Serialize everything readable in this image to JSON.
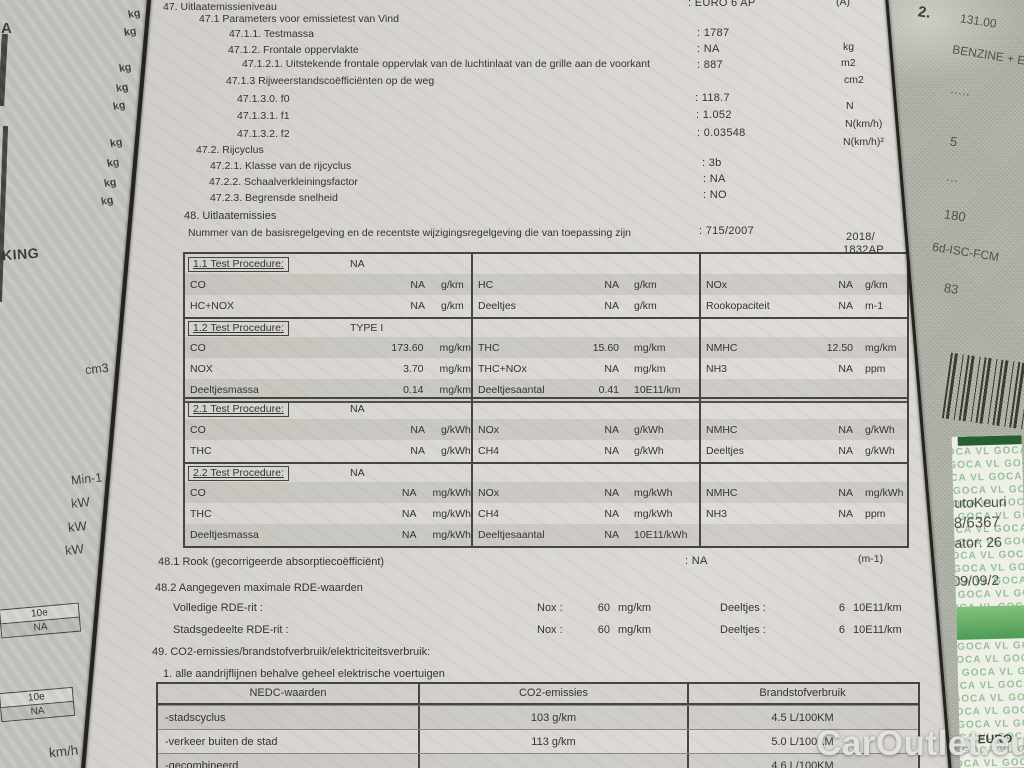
{
  "watermark": "CarOutlet.eu",
  "left_sheet": {
    "fragment_top": "A",
    "kg_labels": [
      "kg",
      "kg",
      "kg",
      "kg",
      "kg",
      "kg",
      "kg",
      "kg",
      "kg"
    ],
    "fragment_king": "KING",
    "cm3": "cm3",
    "min1": "Min-1",
    "kw_labels": [
      "kW",
      "kW",
      "kW"
    ],
    "mini_tables": [
      {
        "header": "10e",
        "value": "NA"
      },
      {
        "header": "10e",
        "value": "NA"
      }
    ],
    "kmh": "km/h"
  },
  "section47": {
    "items": [
      {
        "num": "47.",
        "label": "Uitlaatemissieniveau",
        "value": ": EURO 6 AP",
        "unit": ""
      },
      {
        "num": "47.1",
        "label": "Parameters voor emissietest van Vind",
        "value": "",
        "unit": ""
      },
      {
        "num": "47.1.1.",
        "label": "Testmassa",
        "value": ": 1787",
        "unit": ""
      },
      {
        "num": "47.1.2.",
        "label": "Frontale oppervlakte",
        "value": ": NA",
        "unit": "kg"
      },
      {
        "num": "47.1.2.1.",
        "label": "Uitstekende frontale oppervlak van de luchtinlaat van de grille aan de voorkant",
        "value": ": 887",
        "unit": "m2"
      },
      {
        "num": "47.1.3",
        "label": "Rijweerstandscoëfficiënten op de weg",
        "value": "",
        "unit": "cm2"
      },
      {
        "num": "47.1.3.0.",
        "label": "f0",
        "value": ": 118.7",
        "unit": ""
      },
      {
        "num": "47.1.3.1.",
        "label": "f1",
        "value": ": 1.052",
        "unit": "N"
      },
      {
        "num": "47.1.3.2.",
        "label": "f2",
        "value": ": 0.03548",
        "unit": "N(km/h)",
        "unit2": "N(km/h)²"
      },
      {
        "num": "47.2.",
        "label": "Rijcyclus",
        "value": "",
        "unit": ""
      },
      {
        "num": "47.2.1.",
        "label": "Klasse van de rijcyclus",
        "value": ": 3b",
        "unit": ""
      },
      {
        "num": "47.2.2.",
        "label": "Schaalverkleiningsfactor",
        "value": ": NA",
        "unit": ""
      },
      {
        "num": "47.2.3.",
        "label": "Begrensde snelheid",
        "value": ": NO",
        "unit": ""
      }
    ],
    "header_fragment": "(A)"
  },
  "section48": {
    "heading": "48. Uitlaatemissies",
    "regulation_label": "Nummer van de basisregelgeving en de recentste wijzigingsregelgeving die van toepassing zijn",
    "regulation_value": ": 715/2007",
    "amendment_line1": "2018/",
    "amendment_line2": "1832AP"
  },
  "emissions_table": {
    "blocks": [
      {
        "procedure_label": "1.1 Test Procedure:",
        "procedure_value": "NA",
        "rows": [
          [
            {
              "l": "CO",
              "v": "NA",
              "u": "g/km"
            },
            {
              "l": "HC",
              "v": "NA",
              "u": "g/km"
            },
            {
              "l": "NOx",
              "v": "NA",
              "u": "g/km"
            }
          ],
          [
            {
              "l": "HC+NOX",
              "v": "NA",
              "u": "g/km"
            },
            {
              "l": "Deeltjes",
              "v": "NA",
              "u": "g/km"
            },
            {
              "l": "Rookopaciteit",
              "v": "NA",
              "u": "m-1"
            }
          ]
        ]
      },
      {
        "procedure_label": "1.2 Test Procedure:",
        "procedure_value": "TYPE I",
        "rows": [
          [
            {
              "l": "CO",
              "v": "173.60",
              "u": "mg/km"
            },
            {
              "l": "THC",
              "v": "15.60",
              "u": "mg/km"
            },
            {
              "l": "NMHC",
              "v": "12.50",
              "u": "mg/km"
            }
          ],
          [
            {
              "l": "NOX",
              "v": "3.70",
              "u": "mg/km"
            },
            {
              "l": "THC+NOx",
              "v": "NA",
              "u": "mg/km"
            },
            {
              "l": "NH3",
              "v": "NA",
              "u": "ppm"
            }
          ],
          [
            {
              "l": "Deeltjesmassa",
              "v": "0.14",
              "u": "mg/km"
            },
            {
              "l": "Deeltjesaantal",
              "v": "0.41",
              "u": "10E11/km"
            },
            null
          ]
        ]
      },
      {
        "procedure_label": "2.1 Test Procedure:",
        "procedure_value": "NA",
        "rows": [
          [
            {
              "l": "CO",
              "v": "NA",
              "u": "g/kWh"
            },
            {
              "l": "NOx",
              "v": "NA",
              "u": "g/kWh"
            },
            {
              "l": "NMHC",
              "v": "NA",
              "u": "g/kWh"
            }
          ],
          [
            {
              "l": "THC",
              "v": "NA",
              "u": "g/kWh"
            },
            {
              "l": "CH4",
              "v": "NA",
              "u": "g/kWh"
            },
            {
              "l": "Deeltjes",
              "v": "NA",
              "u": "g/kWh"
            }
          ]
        ]
      },
      {
        "procedure_label": "2.2 Test Procedure:",
        "procedure_value": "NA",
        "rows": [
          [
            {
              "l": "CO",
              "v": "NA",
              "u": "mg/kWh"
            },
            {
              "l": "NOx",
              "v": "NA",
              "u": "mg/kWh"
            },
            {
              "l": "NMHC",
              "v": "NA",
              "u": "mg/kWh"
            }
          ],
          [
            {
              "l": "THC",
              "v": "NA",
              "u": "mg/kWh"
            },
            {
              "l": "CH4",
              "v": "NA",
              "u": "mg/kWh"
            },
            {
              "l": "NH3",
              "v": "NA",
              "u": "ppm"
            }
          ],
          [
            {
              "l": "Deeltjesmassa",
              "v": "NA",
              "u": "mg/kWh"
            },
            {
              "l": "Deeltjesaantal",
              "v": "NA",
              "u": "10E11/kWh"
            },
            null
          ]
        ]
      }
    ]
  },
  "section48_extra": {
    "rook_label": "48.1 Rook (gecorrigeerde absorptiecoëfficiënt)",
    "rook_value": ": NA",
    "rook_unit": "(m-1)",
    "rde_heading": "48.2 Aangegeven maximale RDE-waarden",
    "rde_rows": [
      {
        "label": "Volledige RDE-rit :",
        "nox_label": "Nox :",
        "nox_value": "60",
        "nox_unit": "mg/km",
        "pn_label": "Deeltjes :",
        "pn_value": "6",
        "pn_unit": "10E11/km"
      },
      {
        "label": "Stadsgedeelte RDE-rit :",
        "nox_label": "Nox :",
        "nox_value": "60",
        "nox_unit": "mg/km",
        "pn_label": "Deeltjes :",
        "pn_value": "6",
        "pn_unit": "10E11/km"
      }
    ]
  },
  "section49": {
    "heading": "49. CO2-emissies/brandstofverbruik/elektriciteitsverbruik:",
    "sub": "1. alle aandrijflijnen behalve geheel elektrische voertuigen",
    "nedc_table": {
      "headers": [
        "NEDC-waarden",
        "CO2-emissies",
        "Brandstofverbruik"
      ],
      "rows": [
        {
          "label": "-stadscyclus",
          "co2": "103 g/km",
          "fuel": "4.5 L/100KM"
        },
        {
          "label": "-verkeer buiten de stad",
          "co2": "113 g/km",
          "fuel": "5.0 L/100KM"
        },
        {
          "label": "-gecombineerd",
          "co2": "",
          "fuel": "4.6 L/100KM"
        }
      ]
    }
  },
  "right_sheet": {
    "index": "2.",
    "lines": [
      "131.00",
      "BENZINE + E",
      "·····",
      "5",
      "···",
      "180",
      "6d-ISC-FCM",
      "83"
    ],
    "sticker": {
      "bg_text": "GOCA VL GOCA VL GOCA VL",
      "lines": [
        "utoKeuri",
        "8/6367",
        "ator: 26",
        "09/09/2"
      ],
      "fragment_bottom": "EURO"
    }
  }
}
